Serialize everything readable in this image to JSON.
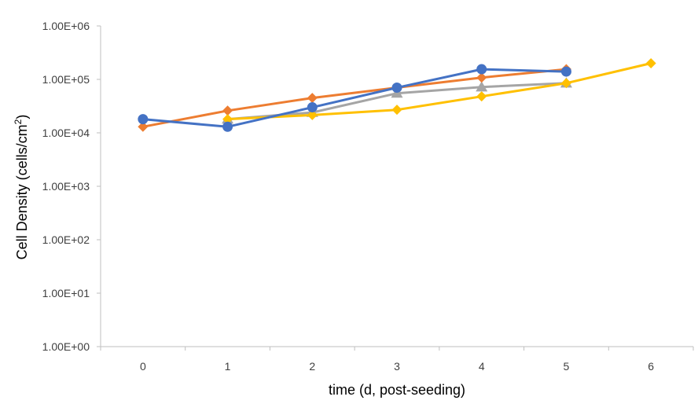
{
  "chart_data": {
    "type": "line",
    "title": "",
    "xlabel": "time (d, post-seeding)",
    "ylabel": {
      "main": "Cell Density (cells/cm",
      "superscript": "2",
      "close": ")"
    },
    "y_scale": "log10",
    "ylim": [
      1,
      1000000
    ],
    "xlim": [
      -0.5,
      6.5
    ],
    "x_ticks": [
      "0",
      "1",
      "2",
      "3",
      "4",
      "5",
      "6"
    ],
    "y_ticks": [
      {
        "value": 1,
        "label": "1.00E+00"
      },
      {
        "value": 10,
        "label": "1.00E+01"
      },
      {
        "value": 100,
        "label": "1.00E+02"
      },
      {
        "value": 1000,
        "label": "1.00E+03"
      },
      {
        "value": 10000,
        "label": "1.00E+04"
      },
      {
        "value": 100000,
        "label": "1.00E+05"
      },
      {
        "value": 1000000,
        "label": "1.00E+06"
      }
    ],
    "grid": false,
    "legend": "none",
    "series": [
      {
        "color": "#A5A5A5",
        "marker": "triangle",
        "points": [
          [
            1,
            18000
          ],
          [
            2,
            24000
          ],
          [
            3,
            55000
          ],
          [
            4,
            72000
          ],
          [
            5,
            85000
          ]
        ]
      },
      {
        "color": "#ED7D31",
        "marker": "diamond",
        "points": [
          [
            0,
            13000
          ],
          [
            1,
            26000
          ],
          [
            2,
            45000
          ],
          [
            3,
            70000
          ],
          [
            4,
            108000
          ],
          [
            5,
            155000
          ]
        ]
      },
      {
        "color": "#FFC000",
        "marker": "diamond",
        "points": [
          [
            1,
            18000
          ],
          [
            2,
            21500
          ],
          [
            3,
            27000
          ],
          [
            4,
            48000
          ],
          [
            5,
            85000
          ],
          [
            6,
            200000
          ]
        ]
      },
      {
        "color": "#4472C4",
        "marker": "circle",
        "points": [
          [
            0,
            18000
          ],
          [
            1,
            13000
          ],
          [
            2,
            30000
          ],
          [
            3,
            70000
          ],
          [
            4,
            155000
          ],
          [
            5,
            140000
          ]
        ]
      }
    ]
  }
}
